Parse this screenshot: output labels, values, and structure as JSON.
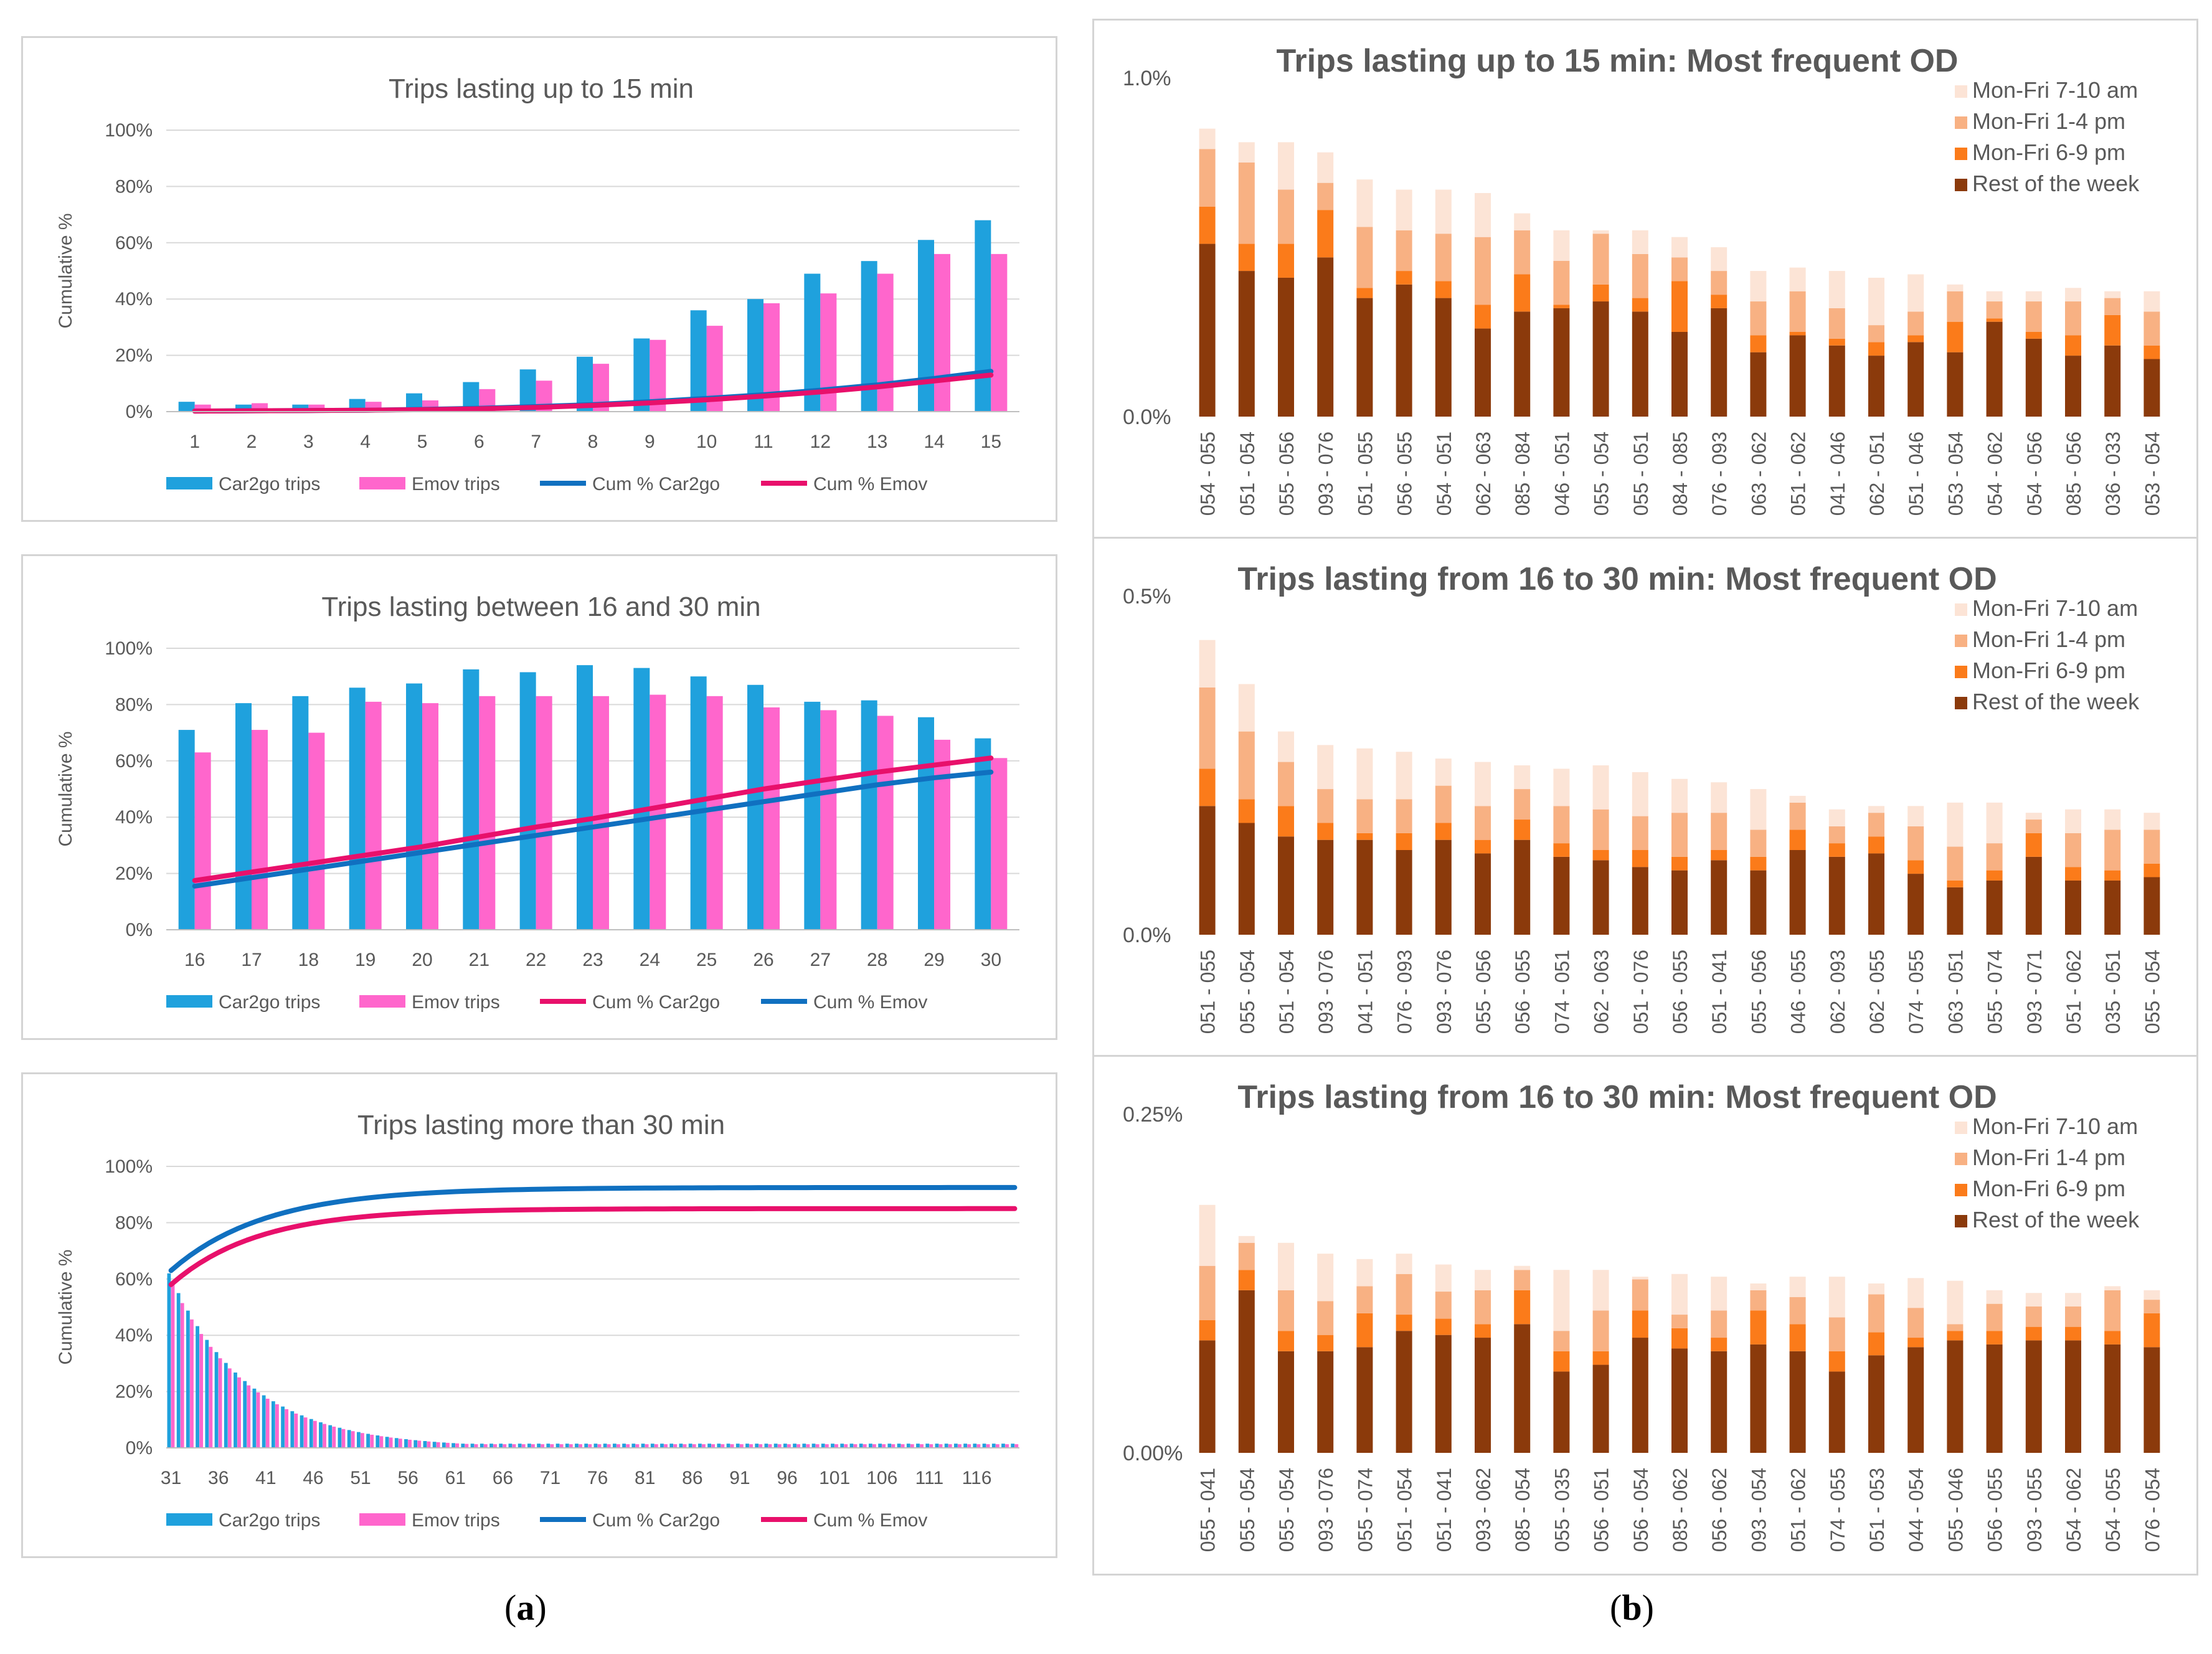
{
  "colors": {
    "car2go": "#1FA1DD",
    "emov": "#FF66CC",
    "cumBlue": "#1070C0",
    "cumPink": "#E8106B",
    "c1": "#FCE4D6",
    "c2": "#F8B183",
    "c3": "#FB7B1A",
    "c4": "#8B3A0B",
    "grid": "#D9D9D9",
    "axis": "#595959"
  },
  "captions": {
    "a": "a",
    "b": "b"
  },
  "chart_data": [
    {
      "id": "a1",
      "type": "bar",
      "title": "Trips lasting up to 15 min",
      "ylabel": "Cumulative %",
      "ylim": [
        0,
        100
      ],
      "yticks": [
        "0%",
        "20%",
        "40%",
        "60%",
        "80%",
        "100%"
      ],
      "categories": [
        "1",
        "2",
        "3",
        "4",
        "5",
        "6",
        "7",
        "8",
        "9",
        "10",
        "11",
        "12",
        "13",
        "14",
        "15"
      ],
      "series": [
        {
          "name": "Car2go trips",
          "kind": "bar",
          "color": "car2go",
          "values": [
            3.5,
            2.5,
            2.5,
            4.5,
            6.5,
            10.5,
            15,
            19.5,
            26,
            36,
            40,
            49,
            53.5,
            61,
            68
          ]
        },
        {
          "name": "Emov trips",
          "kind": "bar",
          "color": "emov",
          "values": [
            2.5,
            3,
            2.5,
            3.5,
            4,
            8,
            11,
            17,
            25.5,
            30.5,
            38.5,
            42,
            49,
            56,
            56
          ]
        },
        {
          "name": "Cum % Car2go",
          "kind": "line",
          "color": "cumBlue",
          "values": [
            0.2,
            0.3,
            0.4,
            0.5,
            0.8,
            1.2,
            1.8,
            2.5,
            3.5,
            4.7,
            6,
            7.6,
            9.5,
            11.8,
            14.3
          ]
        },
        {
          "name": "Cum % Emov",
          "kind": "line",
          "color": "cumPink",
          "values": [
            0.2,
            0.3,
            0.4,
            0.5,
            0.7,
            1,
            1.5,
            2.2,
            3.1,
            4.2,
            5.5,
            7,
            8.8,
            10.9,
            13
          ]
        }
      ]
    },
    {
      "id": "a2",
      "type": "bar",
      "title": "Trips lasting between 16 and 30 min",
      "ylabel": "Cumulative %",
      "ylim": [
        0,
        100
      ],
      "yticks": [
        "0%",
        "20%",
        "40%",
        "60%",
        "80%",
        "100%"
      ],
      "categories": [
        "16",
        "17",
        "18",
        "19",
        "20",
        "21",
        "22",
        "23",
        "24",
        "25",
        "26",
        "27",
        "28",
        "29",
        "30"
      ],
      "series": [
        {
          "name": "Car2go trips",
          "kind": "bar",
          "color": "car2go",
          "values": [
            71,
            80.5,
            83,
            86,
            87.5,
            92.5,
            91.5,
            94,
            93,
            90,
            87,
            81,
            81.5,
            75.5,
            68
          ]
        },
        {
          "name": "Emov trips",
          "kind": "bar",
          "color": "emov",
          "values": [
            63,
            71,
            70,
            81,
            80.5,
            83,
            83,
            83,
            83.5,
            83,
            79,
            78,
            76,
            67.5,
            61
          ]
        },
        {
          "name": "Cum % Car2go",
          "kind": "line",
          "color": "cumPink",
          "values": [
            17.5,
            20.5,
            23.5,
            26.5,
            29.5,
            33,
            36.5,
            39.5,
            43,
            46.5,
            50,
            53,
            56,
            58.5,
            61
          ]
        },
        {
          "name": "Cum % Emov",
          "kind": "line",
          "color": "cumBlue",
          "values": [
            15.5,
            18.5,
            21.5,
            24.5,
            27.5,
            30.5,
            33.5,
            36.5,
            39.5,
            42.5,
            45.5,
            48.5,
            51.5,
            54,
            56
          ]
        }
      ]
    },
    {
      "id": "a3",
      "type": "bar",
      "title": "Trips lasting more than 30 min",
      "ylabel": "Cumulative %",
      "ylim": [
        0,
        100
      ],
      "yticks": [
        "0%",
        "20%",
        "40%",
        "60%",
        "80%",
        "100%"
      ],
      "x_range": [
        31,
        120
      ],
      "xticks": [
        "31",
        "36",
        "41",
        "46",
        "51",
        "56",
        "61",
        "66",
        "71",
        "76",
        "81",
        "86",
        "91",
        "96",
        "101",
        "106",
        "111",
        "116"
      ],
      "series": [
        {
          "name": "Car2go trips",
          "kind": "bar",
          "color": "car2go",
          "start": 62,
          "decay": 0.12,
          "floor": 1.5
        },
        {
          "name": "Emov trips",
          "kind": "bar",
          "color": "emov",
          "start": 58,
          "decay": 0.12,
          "floor": 1.3
        },
        {
          "name": "Cum % Car2go",
          "kind": "line",
          "color": "cumBlue",
          "start": 63,
          "end": 92.5,
          "rate": 0.1
        },
        {
          "name": "Cum % Emov",
          "kind": "line",
          "color": "cumPink",
          "start": 58,
          "end": 85,
          "rate": 0.11
        }
      ]
    },
    {
      "id": "b1",
      "type": "stacked-bar",
      "title": "Trips lasting up to 15 min: Most frequent OD",
      "ylim": [
        0,
        1.0
      ],
      "ytop_label": "1.0%",
      "ybottom_label": "0.0%",
      "categories": [
        "054 - 055",
        "051 - 054",
        "055 - 056",
        "093 - 076",
        "051 - 055",
        "056 - 055",
        "054 - 051",
        "062 - 063",
        "085 - 084",
        "046 - 051",
        "055 - 054",
        "055 - 051",
        "084 - 085",
        "076 - 093",
        "063 - 062",
        "051 - 062",
        "041 - 046",
        "062 - 051",
        "051 - 046",
        "053 - 054",
        "054 - 062",
        "054 - 056",
        "085 - 056",
        "036 - 033",
        "053 - 054"
      ],
      "series": [
        {
          "name": "Rest of the week",
          "color": "c4",
          "values": [
            0.51,
            0.43,
            0.41,
            0.47,
            0.35,
            0.39,
            0.35,
            0.26,
            0.31,
            0.32,
            0.34,
            0.31,
            0.25,
            0.32,
            0.19,
            0.24,
            0.21,
            0.18,
            0.22,
            0.19,
            0.28,
            0.23,
            0.18,
            0.21,
            0.17
          ]
        },
        {
          "name": "Mon-Fri 6-9 pm",
          "color": "c3",
          "values": [
            0.11,
            0.08,
            0.1,
            0.14,
            0.03,
            0.04,
            0.05,
            0.07,
            0.11,
            0.01,
            0.05,
            0.04,
            0.15,
            0.04,
            0.05,
            0.01,
            0.02,
            0.04,
            0.02,
            0.09,
            0.01,
            0.02,
            0.06,
            0.09,
            0.04
          ]
        },
        {
          "name": "Mon-Fri 1-4 pm",
          "color": "c2",
          "values": [
            0.17,
            0.24,
            0.16,
            0.08,
            0.18,
            0.12,
            0.14,
            0.2,
            0.13,
            0.13,
            0.15,
            0.13,
            0.07,
            0.07,
            0.1,
            0.12,
            0.09,
            0.05,
            0.07,
            0.09,
            0.05,
            0.09,
            0.1,
            0.05,
            0.1
          ]
        },
        {
          "name": "Mon-Fri 7-10 am",
          "color": "c1",
          "values": [
            0.06,
            0.06,
            0.14,
            0.09,
            0.14,
            0.12,
            0.13,
            0.13,
            0.05,
            0.09,
            0.01,
            0.07,
            0.06,
            0.07,
            0.09,
            0.07,
            0.11,
            0.14,
            0.11,
            0.02,
            0.03,
            0.03,
            0.04,
            0.02,
            0.06
          ]
        }
      ]
    },
    {
      "id": "b2",
      "type": "stacked-bar",
      "title": "Trips lasting from 16 to 30 min: Most frequent OD",
      "ylim": [
        0,
        0.5
      ],
      "ytop_label": "0.5%",
      "ybottom_label": "0.0%",
      "categories": [
        "051 - 055",
        "055 - 054",
        "051 - 054",
        "093 - 076",
        "041 - 051",
        "076 - 093",
        "093 - 076",
        "055 - 056",
        "056 - 055",
        "074 - 051",
        "062 - 063",
        "051 - 076",
        "056 - 055",
        "051 - 041",
        "055 - 056",
        "046 - 055",
        "062 - 093",
        "062 - 055",
        "074 - 055",
        "063 - 051",
        "055 - 074",
        "093 - 071",
        "051 - 062",
        "035 - 051",
        "055 - 054"
      ],
      "series": [
        {
          "name": "Rest of the week",
          "color": "c4",
          "values": [
            0.19,
            0.165,
            0.145,
            0.14,
            0.14,
            0.125,
            0.14,
            0.12,
            0.14,
            0.115,
            0.11,
            0.1,
            0.095,
            0.11,
            0.095,
            0.125,
            0.115,
            0.12,
            0.09,
            0.07,
            0.08,
            0.115,
            0.08,
            0.08,
            0.085
          ]
        },
        {
          "name": "Mon-Fri 6-9 pm",
          "color": "c3",
          "values": [
            0.055,
            0.035,
            0.045,
            0.025,
            0.01,
            0.025,
            0.025,
            0.02,
            0.03,
            0.02,
            0.015,
            0.025,
            0.02,
            0.015,
            0.02,
            0.03,
            0.02,
            0.025,
            0.02,
            0.01,
            0.015,
            0.035,
            0.02,
            0.015,
            0.02
          ]
        },
        {
          "name": "Mon-Fri 1-4 pm",
          "color": "c2",
          "values": [
            0.12,
            0.1,
            0.065,
            0.05,
            0.05,
            0.05,
            0.055,
            0.05,
            0.045,
            0.055,
            0.06,
            0.05,
            0.065,
            0.055,
            0.04,
            0.04,
            0.025,
            0.035,
            0.05,
            0.05,
            0.04,
            0.02,
            0.05,
            0.06,
            0.05
          ]
        },
        {
          "name": "Mon-Fri 7-10 am",
          "color": "c1",
          "values": [
            0.07,
            0.07,
            0.045,
            0.065,
            0.075,
            0.07,
            0.04,
            0.065,
            0.035,
            0.055,
            0.065,
            0.065,
            0.05,
            0.045,
            0.06,
            0.01,
            0.025,
            0.01,
            0.03,
            0.065,
            0.06,
            0.01,
            0.035,
            0.03,
            0.025
          ]
        }
      ]
    },
    {
      "id": "b3",
      "type": "stacked-bar",
      "title": "Trips lasting from 16 to 30 min: Most frequent OD",
      "ylim": [
        0,
        0.25
      ],
      "ytop_label": "0.25%",
      "ybottom_label": "0.00%",
      "categories": [
        "055 - 041",
        "055 - 054",
        "055 - 054",
        "093 - 076",
        "055 - 074",
        "051 - 054",
        "051 - 041",
        "093 - 062",
        "085 - 054",
        "055 - 035",
        "056 - 051",
        "056 - 054",
        "085 - 062",
        "056 - 062",
        "093 - 054",
        "051 - 062",
        "074 - 055",
        "051 - 053",
        "044 - 054",
        "055 - 046",
        "056 - 055",
        "093 - 055",
        "054 - 062",
        "054 - 055",
        "076 - 054"
      ],
      "series": [
        {
          "name": "Rest of the week",
          "color": "c4",
          "values": [
            0.083,
            0.12,
            0.075,
            0.075,
            0.078,
            0.09,
            0.087,
            0.085,
            0.095,
            0.06,
            0.065,
            0.085,
            0.077,
            0.075,
            0.08,
            0.075,
            0.06,
            0.072,
            0.078,
            0.083,
            0.08,
            0.083,
            0.083,
            0.08,
            0.078
          ]
        },
        {
          "name": "Mon-Fri 6-9 pm",
          "color": "c3",
          "values": [
            0.015,
            0.015,
            0.015,
            0.012,
            0.025,
            0.012,
            0.012,
            0.01,
            0.025,
            0.015,
            0.01,
            0.02,
            0.015,
            0.01,
            0.025,
            0.02,
            0.015,
            0.017,
            0.007,
            0.007,
            0.01,
            0.01,
            0.01,
            0.01,
            0.025
          ]
        },
        {
          "name": "Mon-Fri 1-4 pm",
          "color": "c2",
          "values": [
            0.04,
            0.02,
            0.03,
            0.025,
            0.02,
            0.03,
            0.02,
            0.025,
            0.015,
            0.015,
            0.03,
            0.023,
            0.01,
            0.02,
            0.015,
            0.02,
            0.025,
            0.028,
            0.022,
            0.005,
            0.02,
            0.015,
            0.015,
            0.03,
            0.01
          ]
        },
        {
          "name": "Mon-Fri 7-10 am",
          "color": "c1",
          "values": [
            0.045,
            0.005,
            0.035,
            0.035,
            0.02,
            0.015,
            0.02,
            0.015,
            0.003,
            0.045,
            0.03,
            0.002,
            0.03,
            0.025,
            0.005,
            0.015,
            0.03,
            0.008,
            0.022,
            0.032,
            0.01,
            0.01,
            0.01,
            0.003,
            0.007
          ]
        }
      ]
    }
  ]
}
